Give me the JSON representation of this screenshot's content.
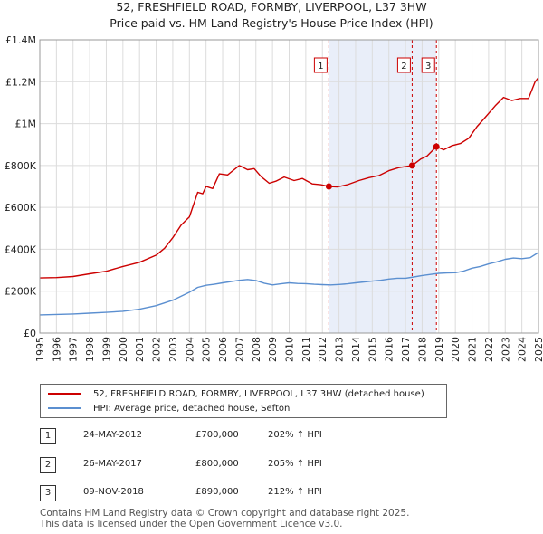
{
  "chart_data": {
    "type": "line",
    "title": "52, FRESHFIELD ROAD, FORMBY, LIVERPOOL, L37 3HW",
    "subtitle": "Price paid vs. HM Land Registry's House Price Index (HPI)",
    "ylim": [
      0,
      1400000
    ],
    "xlim": [
      1995,
      2025
    ],
    "yticks": [
      {
        "value": 0,
        "label": "£0"
      },
      {
        "value": 200000,
        "label": "£200K"
      },
      {
        "value": 400000,
        "label": "£400K"
      },
      {
        "value": 600000,
        "label": "£600K"
      },
      {
        "value": 800000,
        "label": "£800K"
      },
      {
        "value": 1000000,
        "label": "£1M"
      },
      {
        "value": 1200000,
        "label": "£1.2M"
      },
      {
        "value": 1400000,
        "label": "£1.4M"
      }
    ],
    "xticks": [
      "1995",
      "1996",
      "1997",
      "1998",
      "1999",
      "2000",
      "2001",
      "2002",
      "2003",
      "2004",
      "2005",
      "2006",
      "2007",
      "2008",
      "2009",
      "2010",
      "2011",
      "2012",
      "2013",
      "2014",
      "2015",
      "2016",
      "2017",
      "2018",
      "2019",
      "2020",
      "2021",
      "2022",
      "2023",
      "2024",
      "2025"
    ],
    "series": [
      {
        "name": "52, FRESHFIELD ROAD, FORMBY, LIVERPOOL, L37 3HW (detached house)",
        "color": "#cc0000",
        "x": [
          1995.0,
          1996.0,
          1997.0,
          1998.0,
          1999.0,
          2000.0,
          2001.0,
          2002.0,
          2002.5,
          2003.0,
          2003.5,
          2004.0,
          2004.5,
          2004.8,
          2005.0,
          2005.4,
          2005.8,
          2006.3,
          2007.0,
          2007.5,
          2007.9,
          2008.3,
          2008.8,
          2009.2,
          2009.7,
          2010.3,
          2010.8,
          2011.4,
          2011.9,
          2012.39,
          2012.9,
          2013.5,
          2014.2,
          2014.8,
          2015.4,
          2016.0,
          2016.6,
          2017.4,
          2017.9,
          2018.3,
          2018.86,
          2019.3,
          2019.8,
          2020.3,
          2020.8,
          2021.3,
          2021.8,
          2022.4,
          2022.9,
          2023.4,
          2023.9,
          2024.4,
          2024.8,
          2025.0
        ],
        "values": [
          263000,
          265000,
          270000,
          283000,
          295000,
          318000,
          338000,
          372000,
          405000,
          455000,
          515000,
          555000,
          672000,
          665000,
          700000,
          690000,
          760000,
          755000,
          800000,
          780000,
          785000,
          748000,
          715000,
          725000,
          745000,
          728000,
          738000,
          712000,
          708000,
          700000,
          698000,
          708000,
          728000,
          742000,
          752000,
          775000,
          790000,
          800000,
          830000,
          845000,
          890000,
          875000,
          895000,
          905000,
          930000,
          985000,
          1030000,
          1085000,
          1125000,
          1110000,
          1120000,
          1120000,
          1200000,
          1220000
        ]
      },
      {
        "name": "HPI: Average price, detached house, Sefton",
        "color": "#5b8fd0",
        "x": [
          1995.0,
          1996.0,
          1997.0,
          1998.0,
          1999.0,
          2000.0,
          2001.0,
          2002.0,
          2003.0,
          2004.0,
          2004.5,
          2005.0,
          2005.5,
          2006.0,
          2007.0,
          2007.5,
          2008.0,
          2008.5,
          2009.0,
          2009.5,
          2010.0,
          2010.5,
          2011.0,
          2011.5,
          2012.0,
          2012.5,
          2013.0,
          2013.5,
          2014.0,
          2014.5,
          2015.0,
          2015.5,
          2016.0,
          2016.5,
          2017.0,
          2017.5,
          2018.0,
          2018.5,
          2019.0,
          2019.5,
          2020.0,
          2020.5,
          2021.0,
          2021.5,
          2022.0,
          2022.5,
          2023.0,
          2023.5,
          2024.0,
          2024.5,
          2025.0
        ],
        "values": [
          87000,
          89000,
          91000,
          95000,
          99000,
          104000,
          114000,
          131000,
          157000,
          195000,
          218000,
          228000,
          233000,
          240000,
          252000,
          256000,
          251000,
          238000,
          230000,
          235000,
          240000,
          237000,
          236000,
          233000,
          231000,
          230000,
          232000,
          235000,
          240000,
          244000,
          248000,
          252000,
          258000,
          262000,
          262000,
          268000,
          275000,
          280000,
          285000,
          287000,
          288000,
          296000,
          310000,
          318000,
          330000,
          340000,
          352000,
          358000,
          355000,
          360000,
          385000
        ]
      }
    ],
    "sales": [
      {
        "num": "1",
        "x": 2012.39,
        "value": 700000,
        "date": "24-MAY-2012",
        "price": "£700,000",
        "hpi": "202% ↑ HPI"
      },
      {
        "num": "2",
        "x": 2017.4,
        "value": 800000,
        "date": "26-MAY-2017",
        "price": "£800,000",
        "hpi": "205% ↑ HPI"
      },
      {
        "num": "3",
        "x": 2018.86,
        "value": 890000,
        "date": "09-NOV-2018",
        "price": "£890,000",
        "hpi": "212% ↑ HPI"
      }
    ]
  },
  "legend": {
    "property": "52, FRESHFIELD ROAD, FORMBY, LIVERPOOL, L37 3HW (detached house)",
    "hpi": "HPI: Average price, detached house, Sefton"
  },
  "footer": {
    "line1": "Contains HM Land Registry data © Crown copyright and database right 2025.",
    "line2": "This data is licensed under the Open Government Licence v3.0."
  }
}
